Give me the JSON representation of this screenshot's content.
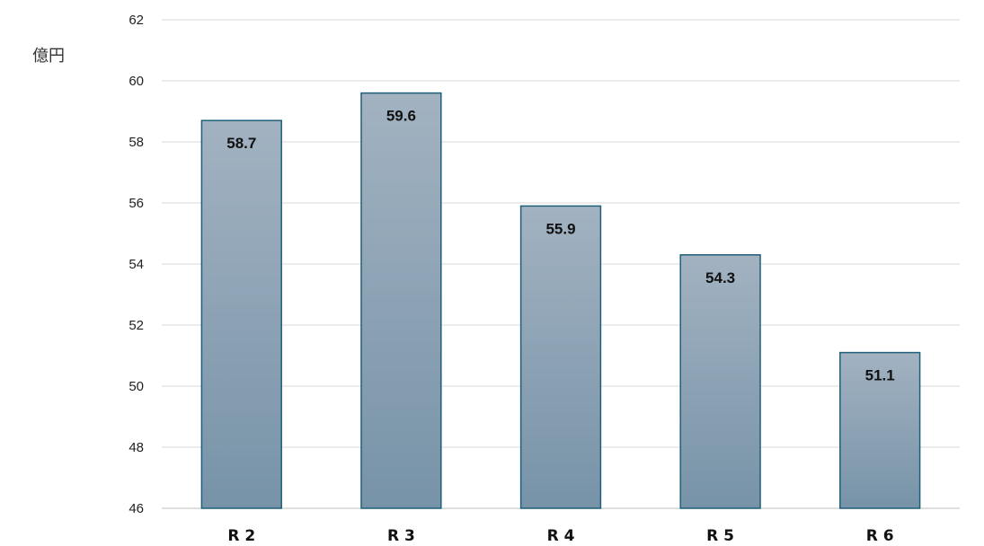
{
  "chart_data": {
    "type": "bar",
    "ylabel": "億円",
    "categories": [
      "R 2",
      "R 3",
      "R 4",
      "R 5",
      "R 6"
    ],
    "values": [
      58.7,
      59.6,
      55.9,
      54.3,
      51.1
    ],
    "data_labels": [
      "58.7",
      "59.6",
      "55.9",
      "54.3",
      "51.1"
    ],
    "ylim": [
      46,
      62
    ],
    "yticks": [
      46,
      48,
      50,
      52,
      54,
      56,
      58,
      60,
      62
    ],
    "grid": true,
    "legend": "none",
    "colors": {
      "bar_top": "#a2b2c1",
      "bar_bottom": "#7793a8",
      "bar_stroke": "#1f5f7a",
      "grid": "#d9d9d9",
      "axis": "#bfbfbf"
    }
  }
}
